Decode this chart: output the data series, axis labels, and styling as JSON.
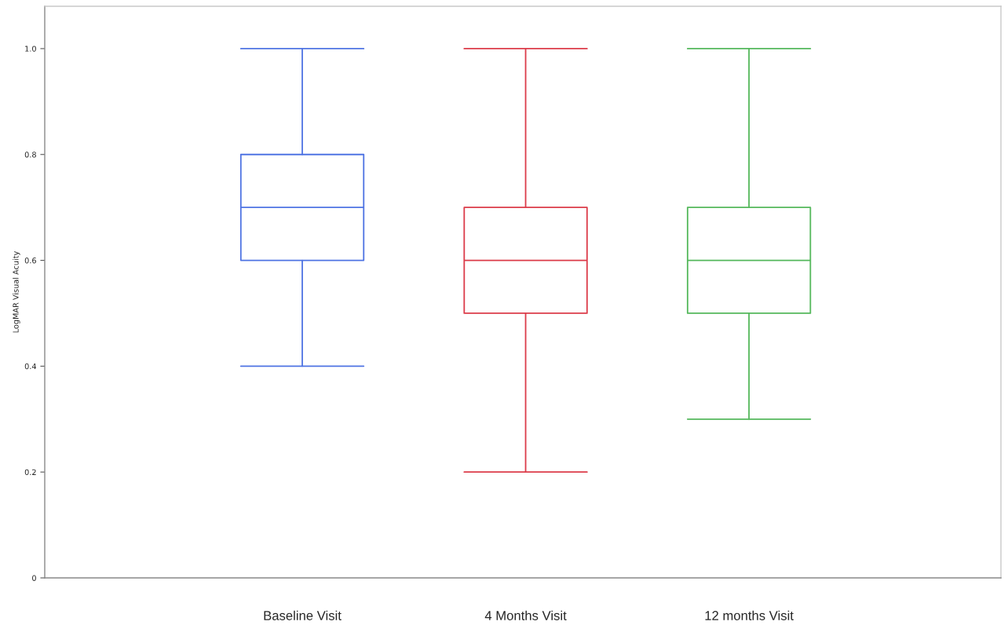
{
  "chart_data": {
    "type": "box",
    "ylabel": "LogMAR Visual Acuity",
    "categories": [
      "Baseline Visit",
      "4 Months Visit",
      "12 months Visit"
    ],
    "boxes": [
      {
        "low": 0.4,
        "q1": 0.6,
        "median": 0.7,
        "q3": 0.8,
        "high": 1.0
      },
      {
        "low": 0.2,
        "q1": 0.5,
        "median": 0.6,
        "q3": 0.7,
        "high": 1.0
      },
      {
        "low": 0.3,
        "q1": 0.5,
        "median": 0.6,
        "q3": 0.7,
        "high": 1.0
      }
    ],
    "colors": [
      "#4f74e3",
      "#dc3c4a",
      "#55b85c"
    ],
    "ylim": [
      0,
      1.08
    ],
    "yticks": [
      0,
      {
        "value": 0.2,
        "label": "0.2"
      },
      {
        "value": 0.4,
        "label": "0.4"
      },
      {
        "value": 0.6,
        "label": "0.6"
      },
      {
        "value": 0.8,
        "label": "0.8"
      },
      {
        "value": 1.0,
        "label": "1.0"
      }
    ],
    "grid": false
  }
}
